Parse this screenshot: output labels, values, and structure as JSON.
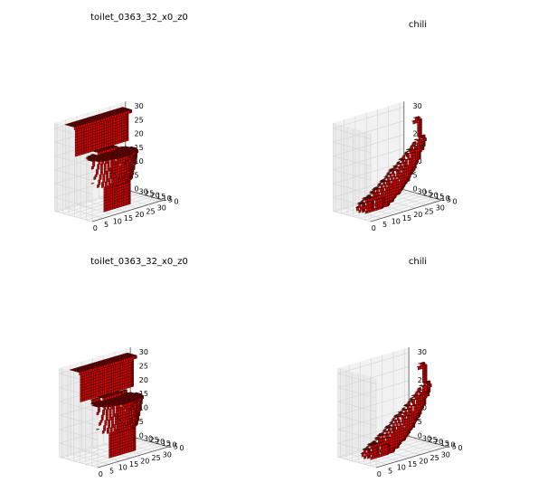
{
  "chart_data": [
    {
      "type": "voxel3d",
      "title": "toilet_0363_32_x0_z0",
      "xticks": [
        "0",
        "5",
        "10",
        "15",
        "20",
        "25",
        "30"
      ],
      "yticks": [
        "0",
        "5",
        "10",
        "15",
        "20",
        "25",
        "30"
      ],
      "zticks": [
        "0",
        "5",
        "10",
        "15",
        "20",
        "25",
        "30"
      ],
      "xlim": [
        0,
        32
      ],
      "ylim": [
        0,
        32
      ],
      "zlim": [
        0,
        32
      ],
      "voxel_color": "#ff0000",
      "edge_color": "#000000",
      "grid": true,
      "object": "toilet",
      "source": "top"
    },
    {
      "type": "voxel3d",
      "title": "chili",
      "xticks": [
        "0",
        "5",
        "10",
        "15",
        "20",
        "25",
        "30"
      ],
      "yticks": [
        "0",
        "5",
        "10",
        "15",
        "20",
        "25",
        "30"
      ],
      "zticks": [
        "0",
        "5",
        "10",
        "15",
        "20",
        "25",
        "30"
      ],
      "xlim": [
        0,
        32
      ],
      "ylim": [
        0,
        32
      ],
      "zlim": [
        0,
        32
      ],
      "voxel_color": "#ff0000",
      "edge_color": "#000000",
      "grid": true,
      "object": "chili",
      "source": "top"
    },
    {
      "type": "voxel3d",
      "title": "toilet_0363_32_x0_z0",
      "xticks": [
        "0",
        "5",
        "10",
        "15",
        "20",
        "25",
        "30"
      ],
      "yticks": [
        "0",
        "5",
        "10",
        "15",
        "20",
        "25",
        "30"
      ],
      "zticks": [
        "0",
        "5",
        "10",
        "15",
        "20",
        "25",
        "30"
      ],
      "xlim": [
        0,
        32
      ],
      "ylim": [
        0,
        32
      ],
      "zlim": [
        0,
        32
      ],
      "voxel_color": "#ff0000",
      "edge_color": "#000000",
      "grid": true,
      "object": "toilet",
      "source": "bottom"
    },
    {
      "type": "voxel3d",
      "title": "chili",
      "xticks": [
        "0",
        "5",
        "10",
        "15",
        "20",
        "25",
        "30"
      ],
      "yticks": [
        "0",
        "5",
        "10",
        "15",
        "20",
        "25",
        "30"
      ],
      "zticks": [
        "0",
        "5",
        "10",
        "15",
        "20",
        "25",
        "30"
      ],
      "xlim": [
        0,
        32
      ],
      "ylim": [
        0,
        32
      ],
      "zlim": [
        0,
        32
      ],
      "voxel_color": "#ff0000",
      "edge_color": "#000000",
      "grid": true,
      "object": "chili",
      "source": "bottom"
    }
  ]
}
